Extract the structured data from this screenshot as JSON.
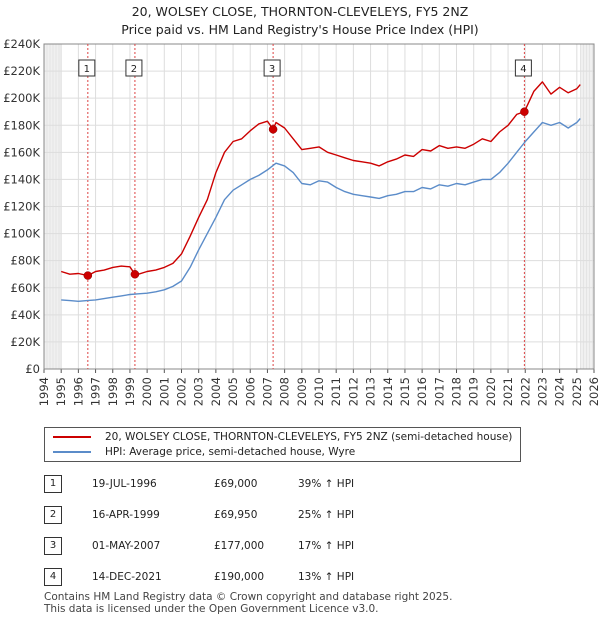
{
  "title_line1": "20, WOLSEY CLOSE, THORNTON-CLEVELEYS, FY5 2NZ",
  "title_line2": "Price paid vs. HM Land Registry's House Price Index (HPI)",
  "colors": {
    "property": "#cc0000",
    "hpi": "#5b8cc9",
    "marker": "#cc0000",
    "vline": "#dd4444",
    "grid": "#dddddd",
    "shade": "#dde6f3"
  },
  "chart_data": {
    "type": "line",
    "title": "Price paid vs. HM Land Registry's House Price Index (HPI)",
    "xlabel": "",
    "ylabel": "",
    "xlim": [
      1994,
      2026
    ],
    "ylim": [
      0,
      240000
    ],
    "x_ticks": [
      "1994",
      "1995",
      "1996",
      "1997",
      "1998",
      "1999",
      "2000",
      "2001",
      "2002",
      "2003",
      "2004",
      "2005",
      "2006",
      "2007",
      "2008",
      "2009",
      "2010",
      "2011",
      "2012",
      "2013",
      "2014",
      "2015",
      "2016",
      "2017",
      "2018",
      "2019",
      "2020",
      "2021",
      "2022",
      "2023",
      "2024",
      "2025",
      "2026"
    ],
    "y_ticks": [
      0,
      20000,
      40000,
      60000,
      80000,
      100000,
      120000,
      140000,
      160000,
      180000,
      200000,
      220000,
      240000
    ],
    "y_tick_labels": [
      "£0",
      "£20K",
      "£40K",
      "£60K",
      "£80K",
      "£100K",
      "£120K",
      "£140K",
      "£160K",
      "£180K",
      "£200K",
      "£220K",
      "£240K"
    ],
    "series": [
      {
        "name": "20, WOLSEY CLOSE, THORNTON-CLEVELEYS, FY5 2NZ (semi-detached house)",
        "x": [
          1995.0,
          1995.5,
          1996.0,
          1996.55,
          1997.0,
          1997.5,
          1998.0,
          1998.5,
          1999.0,
          1999.29,
          1999.5,
          2000.0,
          2000.5,
          2001.0,
          2001.5,
          2002.0,
          2002.5,
          2003.0,
          2003.5,
          2004.0,
          2004.5,
          2005.0,
          2005.5,
          2006.0,
          2006.5,
          2007.0,
          2007.33,
          2007.5,
          2008.0,
          2008.5,
          2009.0,
          2009.5,
          2010.0,
          2010.5,
          2011.0,
          2011.5,
          2012.0,
          2012.5,
          2013.0,
          2013.5,
          2014.0,
          2014.5,
          2015.0,
          2015.5,
          2016.0,
          2016.5,
          2017.0,
          2017.5,
          2018.0,
          2018.5,
          2019.0,
          2019.5,
          2020.0,
          2020.5,
          2021.0,
          2021.5,
          2021.95,
          2022.5,
          2023.0,
          2023.5,
          2024.0,
          2024.5,
          2025.0,
          2025.2
        ],
        "values": [
          72000,
          70000,
          70500,
          69000,
          72000,
          73000,
          75000,
          76000,
          75500,
          69950,
          70000,
          72000,
          73000,
          75000,
          78000,
          85000,
          98000,
          112000,
          125000,
          145000,
          160000,
          168000,
          170000,
          176000,
          181000,
          183000,
          177000,
          182000,
          178000,
          170000,
          162000,
          163000,
          164000,
          160000,
          158000,
          156000,
          154000,
          153000,
          152000,
          150000,
          153000,
          155000,
          158000,
          157000,
          162000,
          161000,
          165000,
          163000,
          164000,
          163000,
          166000,
          170000,
          168000,
          175000,
          180000,
          188000,
          190000,
          205000,
          212000,
          203000,
          208000,
          204000,
          207000,
          210000
        ]
      },
      {
        "name": "HPI: Average price, semi-detached house, Wyre",
        "x": [
          1995.0,
          1995.5,
          1996.0,
          1996.5,
          1997.0,
          1997.5,
          1998.0,
          1998.5,
          1999.0,
          1999.5,
          2000.0,
          2000.5,
          2001.0,
          2001.5,
          2002.0,
          2002.5,
          2003.0,
          2003.5,
          2004.0,
          2004.5,
          2005.0,
          2005.5,
          2006.0,
          2006.5,
          2007.0,
          2007.5,
          2008.0,
          2008.5,
          2009.0,
          2009.5,
          2010.0,
          2010.5,
          2011.0,
          2011.5,
          2012.0,
          2012.5,
          2013.0,
          2013.5,
          2014.0,
          2014.5,
          2015.0,
          2015.5,
          2016.0,
          2016.5,
          2017.0,
          2017.5,
          2018.0,
          2018.5,
          2019.0,
          2019.5,
          2020.0,
          2020.5,
          2021.0,
          2021.5,
          2022.0,
          2022.5,
          2023.0,
          2023.5,
          2024.0,
          2024.5,
          2025.0,
          2025.2
        ],
        "values": [
          51000,
          50500,
          50000,
          50500,
          51000,
          52000,
          53000,
          54000,
          55000,
          55500,
          56000,
          57000,
          58500,
          61000,
          65000,
          75000,
          88000,
          100000,
          112000,
          125000,
          132000,
          136000,
          140000,
          143000,
          147000,
          152000,
          150000,
          145000,
          137000,
          136000,
          139000,
          138000,
          134000,
          131000,
          129000,
          128000,
          127000,
          126000,
          128000,
          129000,
          131000,
          131000,
          134000,
          133000,
          136000,
          135000,
          137000,
          136000,
          138000,
          140000,
          140000,
          145000,
          152000,
          160000,
          168000,
          175000,
          182000,
          180000,
          182000,
          178000,
          182000,
          185000
        ]
      }
    ],
    "sales": [
      {
        "label": "1",
        "x": 1996.55,
        "price": 69000
      },
      {
        "label": "2",
        "x": 1999.29,
        "price": 69950
      },
      {
        "label": "3",
        "x": 2007.33,
        "price": 177000
      },
      {
        "label": "4",
        "x": 2021.95,
        "price": 190000
      }
    ],
    "legend": [
      "20, WOLSEY CLOSE, THORNTON-CLEVELEYS, FY5 2NZ (semi-detached house)",
      "HPI: Average price, semi-detached house, Wyre"
    ]
  },
  "legend": {
    "property": "20, WOLSEY CLOSE, THORNTON-CLEVELEYS, FY5 2NZ (semi-detached house)",
    "hpi": "HPI: Average price, semi-detached house, Wyre"
  },
  "transactions": [
    {
      "num": "1",
      "date": "19-JUL-1996",
      "price": "£69,000",
      "hpi": "39% ↑ HPI"
    },
    {
      "num": "2",
      "date": "16-APR-1999",
      "price": "£69,950",
      "hpi": "25% ↑ HPI"
    },
    {
      "num": "3",
      "date": "01-MAY-2007",
      "price": "£177,000",
      "hpi": "17% ↑ HPI"
    },
    {
      "num": "4",
      "date": "14-DEC-2021",
      "price": "£190,000",
      "hpi": "13% ↑ HPI"
    }
  ],
  "footer": {
    "line1": "Contains HM Land Registry data © Crown copyright and database right 2025.",
    "line2": "This data is licensed under the Open Government Licence v3.0."
  }
}
